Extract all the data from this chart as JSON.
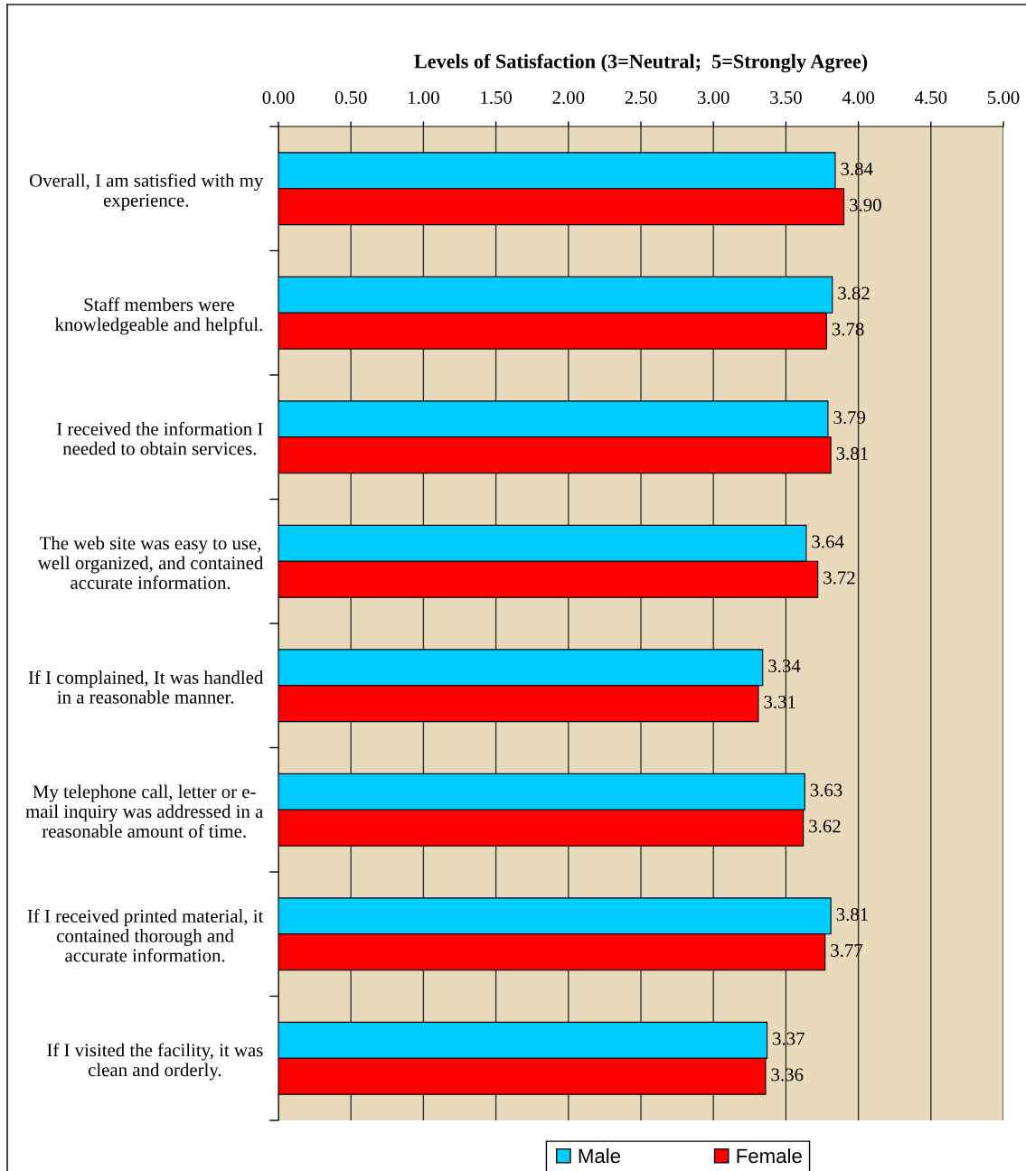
{
  "chart_data": {
    "type": "bar",
    "orientation": "horizontal",
    "xlabel": "Levels of Satisfaction (3=Neutral;  5=Strongly Agree)",
    "categories": [
      "Overall, I am satisfied with my\nexperience.",
      "Staff members were\nknowledgeable and helpful.",
      "I received the information I\nneeded to obtain services.",
      "The web site was easy to use,\nwell organized, and contained\naccurate information.",
      "If I complained, It was handled\nin a reasonable manner.",
      "My telephone call, letter or e-\nmail inquiry was addressed in a\nreasonable amount of time.",
      "If I received printed material, it\ncontained thorough and\naccurate information.",
      "If I visited the facility, it was\nclean and orderly."
    ],
    "series": [
      {
        "name": "Male",
        "color": "#00ccff",
        "values": [
          3.84,
          3.82,
          3.79,
          3.64,
          3.34,
          3.63,
          3.81,
          3.37
        ],
        "value_labels": [
          "3.84",
          "3.82",
          "3.79",
          "3.64",
          "3.34",
          "3.63",
          "3.81",
          "3.37"
        ]
      },
      {
        "name": "Female",
        "color": "#ff0000",
        "values": [
          3.9,
          3.78,
          3.81,
          3.72,
          3.31,
          3.62,
          3.77,
          3.36
        ],
        "value_labels": [
          "3.90",
          "3.78",
          "3.81",
          "3.72",
          "3.31",
          "3.62",
          "3.77",
          "3.36"
        ]
      }
    ],
    "xlim": [
      0,
      5
    ],
    "xticks": [
      {
        "value": 0,
        "label": "0.00"
      },
      {
        "value": 0.5,
        "label": "0.50"
      },
      {
        "value": 1,
        "label": "1.00"
      },
      {
        "value": 1.5,
        "label": "1.50"
      },
      {
        "value": 2,
        "label": "2.00"
      },
      {
        "value": 2.5,
        "label": "2.50"
      },
      {
        "value": 3,
        "label": "3.00"
      },
      {
        "value": 3.5,
        "label": "3.50"
      },
      {
        "value": 4,
        "label": "4.00"
      },
      {
        "value": 4.5,
        "label": "4.50"
      },
      {
        "value": 5,
        "label": "5.00"
      }
    ],
    "grid": "x",
    "legend": "bottom"
  }
}
